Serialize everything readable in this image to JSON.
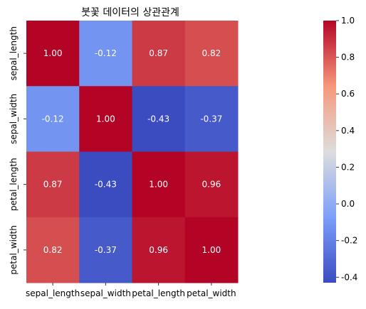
{
  "chart_data": {
    "type": "heatmap",
    "title": "붓꽃 데이터의 상관관계",
    "xlabel": "",
    "ylabel": "",
    "categories": [
      "sepal_length",
      "sepal_width",
      "petal_length",
      "petal_width"
    ],
    "values": [
      [
        1.0,
        -0.12,
        0.87,
        0.82
      ],
      [
        -0.12,
        1.0,
        -0.43,
        -0.37
      ],
      [
        0.87,
        -0.43,
        1.0,
        0.96
      ],
      [
        0.82,
        -0.37,
        0.96,
        1.0
      ]
    ],
    "annotations": [
      [
        "1.00",
        "-0.12",
        "0.87",
        "0.82"
      ],
      [
        "-0.12",
        "1.00",
        "-0.43",
        "-0.37"
      ],
      [
        "0.87",
        "-0.43",
        "1.00",
        "0.96"
      ],
      [
        "0.82",
        "-0.37",
        "0.96",
        "1.00"
      ]
    ],
    "colormap": "coolwarm",
    "vmin": -0.43,
    "vmax": 1.0,
    "colorbar_ticks": [
      "1.0",
      "0.8",
      "0.6",
      "0.4",
      "0.2",
      "0.0",
      "-0.2",
      "-0.4"
    ],
    "colorbar_tick_values": [
      1.0,
      0.8,
      0.6,
      0.4,
      0.2,
      0.0,
      -0.2,
      -0.4
    ],
    "grid": false,
    "legend": "colorbar-right"
  }
}
